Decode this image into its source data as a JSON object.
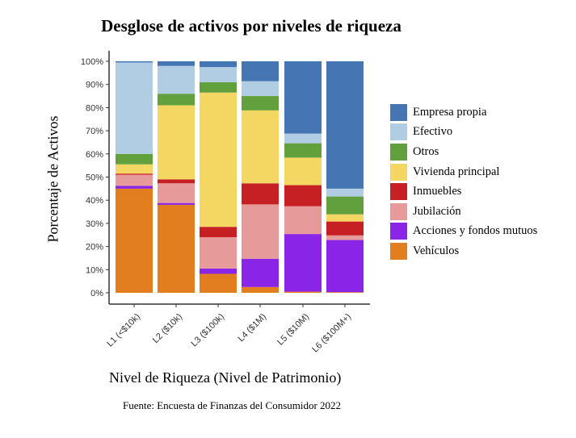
{
  "chart_data": {
    "type": "bar",
    "stacked": true,
    "title": "Desglose de activos por niveles de riqueza",
    "xlabel": "Nivel de Riqueza (Nivel de Patrimonio)",
    "ylabel": "Porcentaje de Activos",
    "source": "Fuente: Encuesta de Finanzas del Consumidor 2022",
    "ylim": [
      0,
      100
    ],
    "yticks": [
      "0%",
      "10%",
      "20%",
      "30%",
      "40%",
      "50%",
      "60%",
      "70%",
      "80%",
      "90%",
      "100%"
    ],
    "categories": [
      "L1 (<$10k)",
      "L2 ($10k)",
      "L3 ($100k)",
      "L4 ($1M)",
      "L5 ($10M)",
      "L6 ($100M+)"
    ],
    "legend_position": "right",
    "series": [
      {
        "name": "Vehículos",
        "color": "#E37E20",
        "values": [
          45,
          38,
          8.2,
          2.5,
          0.5,
          0.3
        ]
      },
      {
        "name": "Acciones y fondos mutuos",
        "color": "#8A24E6",
        "values": [
          1.2,
          0.8,
          2.3,
          12.2,
          24.9,
          22.5
        ]
      },
      {
        "name": "Jubilación",
        "color": "#E69A9A",
        "values": [
          4.8,
          8.5,
          13.5,
          23.5,
          12,
          2
        ]
      },
      {
        "name": "Inmuebles",
        "color": "#C62024",
        "values": [
          0.5,
          1.7,
          4.5,
          9.1,
          9.1,
          6
        ]
      },
      {
        "name": "Vivienda principal",
        "color": "#F4D762",
        "values": [
          4,
          32,
          58,
          31.5,
          11.9,
          3.1
        ]
      },
      {
        "name": "Otros",
        "color": "#62A03D",
        "values": [
          4.5,
          5,
          4.5,
          6.2,
          6.2,
          7.7
        ]
      },
      {
        "name": "Efectivo",
        "color": "#B0CDE3",
        "values": [
          39.5,
          12,
          6.5,
          6.4,
          4.2,
          3.4
        ]
      },
      {
        "name": "Empresa propia",
        "color": "#4575B2",
        "values": [
          0.5,
          2,
          2.5,
          8.6,
          31.2,
          55
        ]
      }
    ]
  }
}
